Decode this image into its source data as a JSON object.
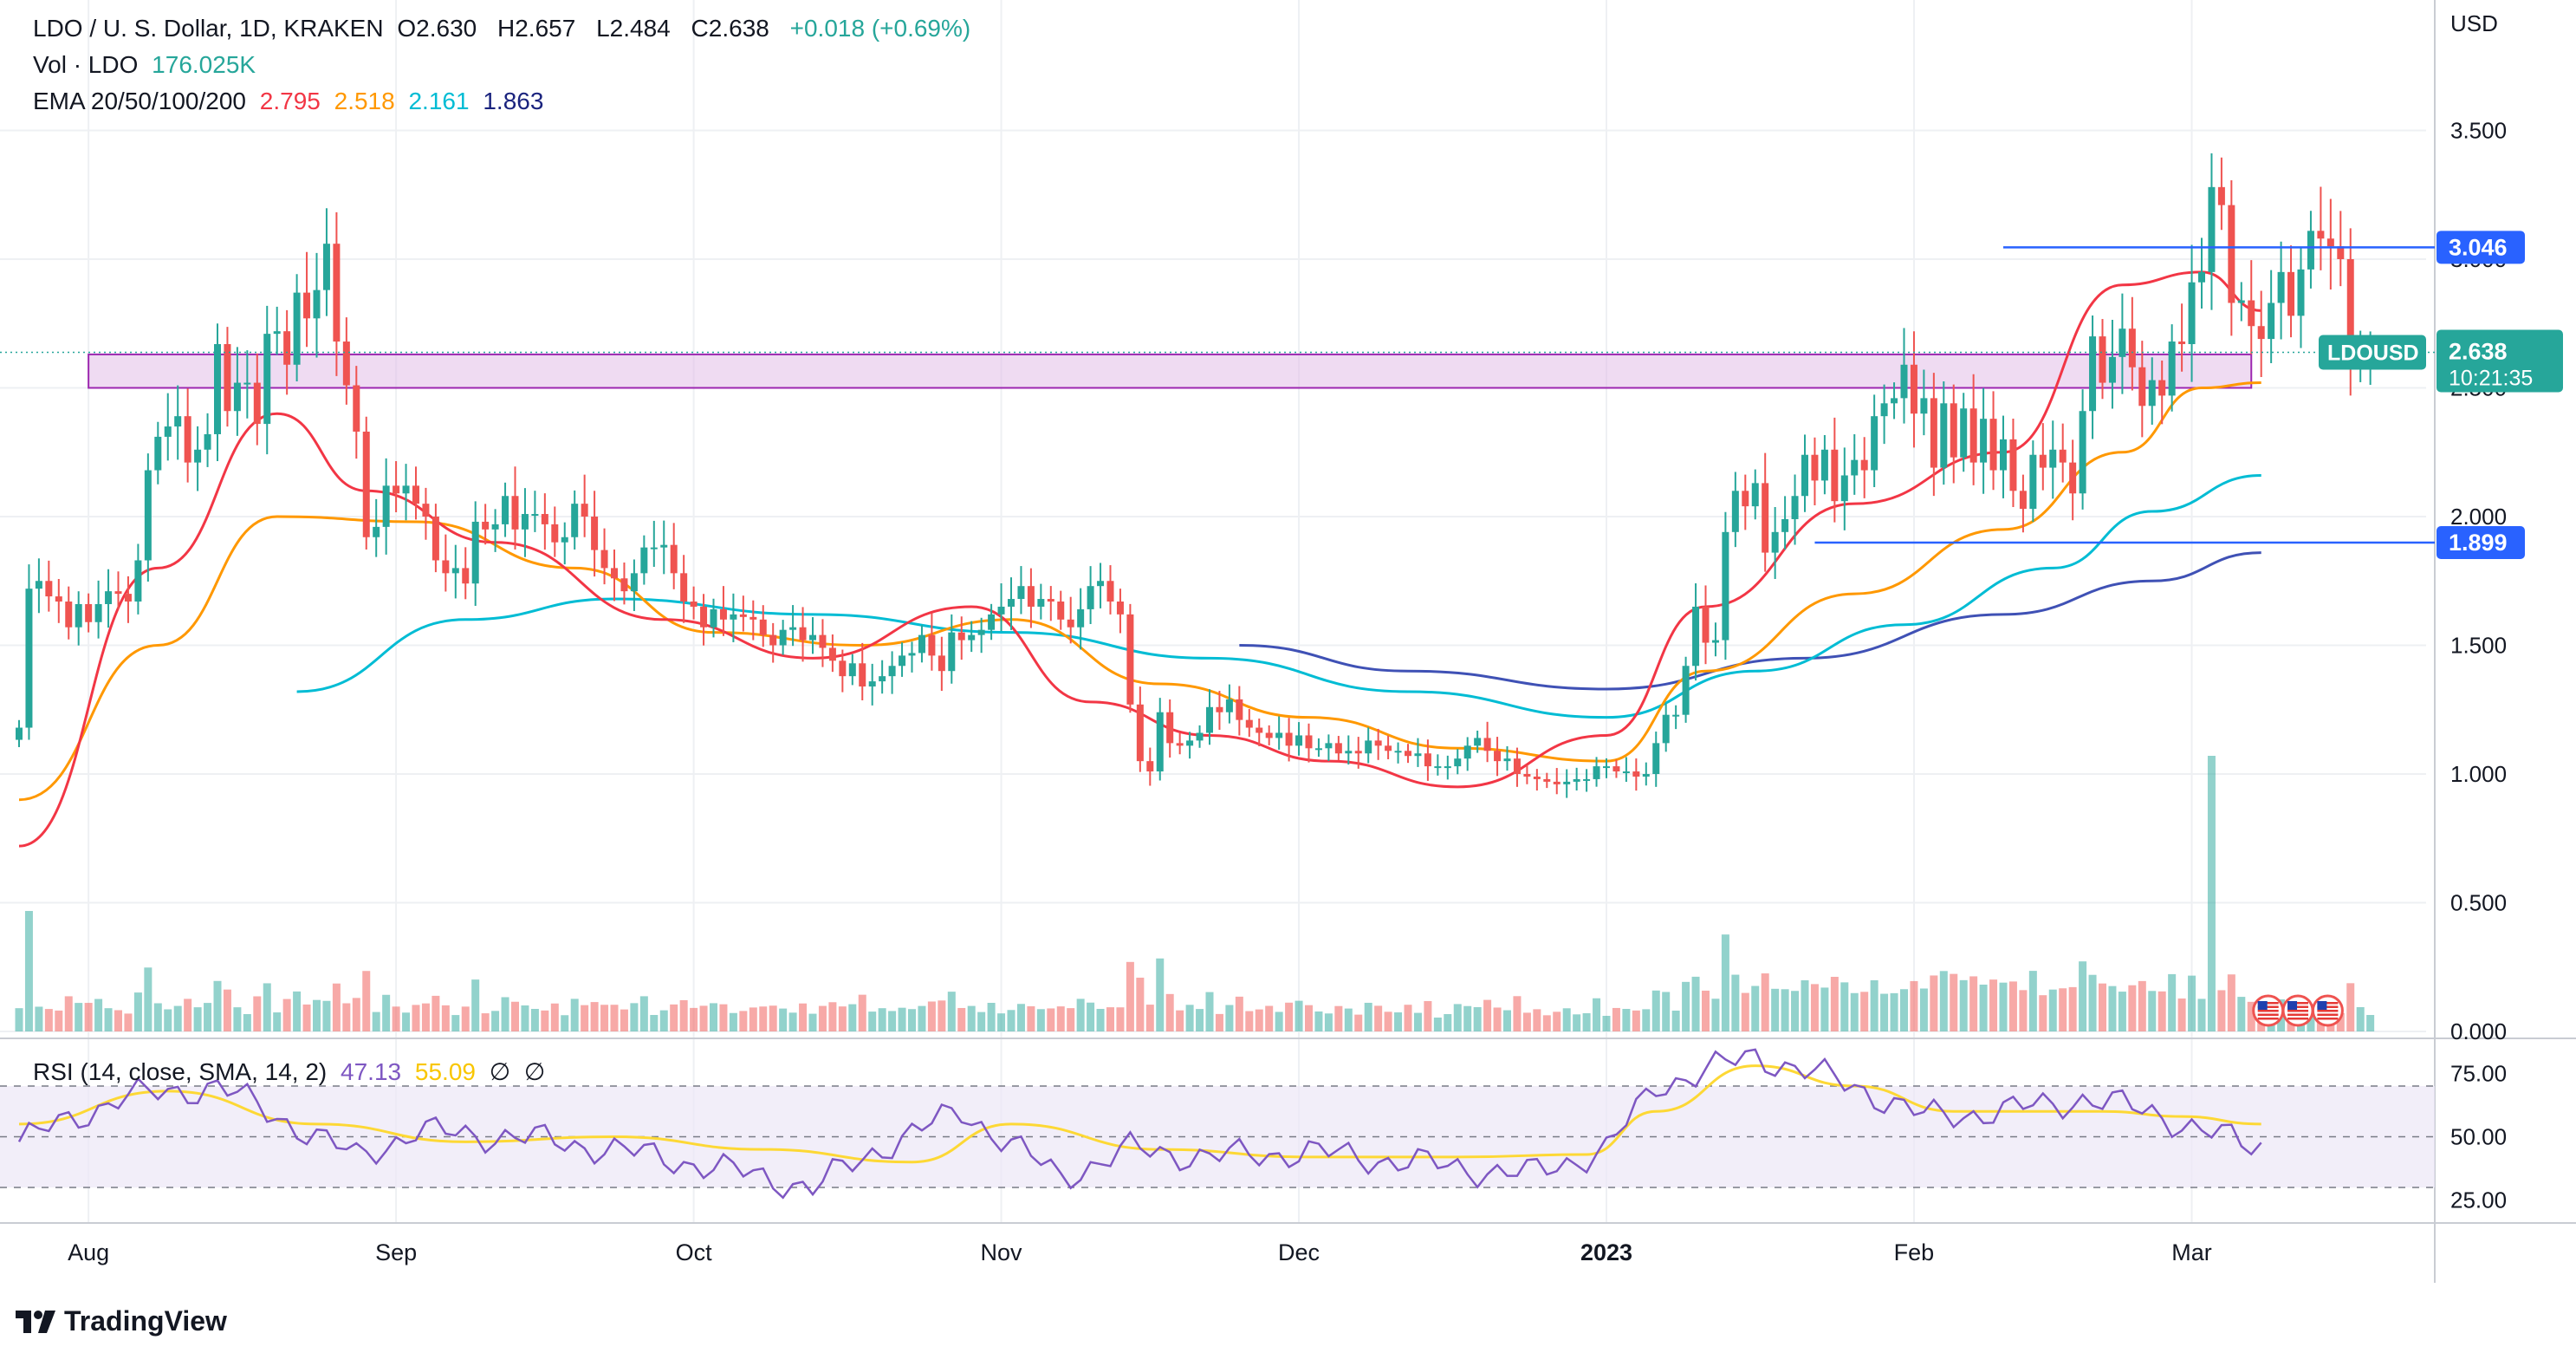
{
  "header": {
    "symbol_line": "LDO / U. S. Dollar, 1D, KRAKEN",
    "o_label": "O",
    "o_value": "2.630",
    "h_label": "H",
    "h_value": "2.657",
    "l_label": "L",
    "l_value": "2.484",
    "c_label": "C",
    "c_value": "2.638",
    "change": "+0.018 (+0.69%)",
    "vol_label": "Vol · LDO",
    "vol_value": "176.025K",
    "ema_label": "EMA 20/50/100/200",
    "ema20": "2.795",
    "ema50": "2.518",
    "ema100": "2.161",
    "ema200": "1.863"
  },
  "rsi_header": {
    "label": "RSI (14, close, SMA, 14, 2)",
    "rsi_value": "47.13",
    "sma_value": "55.09",
    "sym1": "∅",
    "sym2": "∅"
  },
  "axis": {
    "currency": "USD",
    "price_ticks": [
      "3.500",
      "3.000",
      "2.500",
      "2.000",
      "1.500",
      "1.000",
      "0.500",
      "0.000"
    ],
    "price_tick_values": [
      3.5,
      3.0,
      2.5,
      2.0,
      1.5,
      1.0,
      0.5,
      0.0
    ],
    "rsi_ticks": [
      "75.00",
      "50.00",
      "25.00"
    ],
    "rsi_tick_values": [
      75,
      50,
      25
    ],
    "x_labels": [
      "Aug",
      "Sep",
      "Oct",
      "Nov",
      "Dec",
      "2023",
      "Feb",
      "Mar"
    ],
    "x_label_days": [
      7,
      38,
      68,
      99,
      129,
      160,
      191,
      219
    ]
  },
  "badges": {
    "upper_level": "3.046",
    "lower_level": "1.899",
    "symbol": "LDOUSD",
    "price": "2.638",
    "countdown": "10:21:35"
  },
  "brand": "TradingView",
  "colors": {
    "up": "#26a69a",
    "down": "#ef5350",
    "ema20": "#f23645",
    "ema50": "#ff9800",
    "ema100": "#00bcd4",
    "ema200": "#3f51b5",
    "rsi": "#7e57c2",
    "rsi_sma": "#fdd835",
    "level_line": "#2962ff",
    "zone_fill": "#e1bee7",
    "zone_border": "#9c27b0",
    "badge_bg": "#26a69a"
  },
  "chart_data": {
    "type": "candlestick",
    "x_unit": "days since first candle (Jul 18)",
    "ylim": [
      0,
      3.75
    ],
    "levels": [
      3.046,
      1.899
    ],
    "zone": [
      2.5,
      2.63
    ],
    "ema20_x": [
      0,
      14,
      26,
      35,
      48,
      65,
      80,
      96,
      108,
      120,
      132,
      145,
      160,
      170,
      185,
      200,
      212,
      220,
      226
    ],
    "ema20_y": [
      0.72,
      1.8,
      2.4,
      2.1,
      1.9,
      1.6,
      1.45,
      1.65,
      1.28,
      1.15,
      1.05,
      0.95,
      1.15,
      1.65,
      2.05,
      2.25,
      2.9,
      2.95,
      2.8
    ],
    "ema50_x": [
      0,
      14,
      26,
      40,
      56,
      70,
      85,
      100,
      115,
      130,
      145,
      160,
      170,
      185,
      200,
      212,
      220,
      226
    ],
    "ema50_y": [
      0.9,
      1.5,
      2.0,
      1.98,
      1.8,
      1.55,
      1.5,
      1.6,
      1.35,
      1.22,
      1.1,
      1.05,
      1.4,
      1.7,
      1.95,
      2.25,
      2.5,
      2.52
    ],
    "ema100_x": [
      28,
      45,
      60,
      80,
      100,
      120,
      140,
      160,
      175,
      190,
      205,
      215,
      226
    ],
    "ema100_y": [
      1.32,
      1.6,
      1.68,
      1.62,
      1.55,
      1.45,
      1.32,
      1.22,
      1.4,
      1.58,
      1.8,
      2.02,
      2.16
    ],
    "ema200_x": [
      123,
      140,
      160,
      180,
      200,
      215,
      226
    ],
    "ema200_y": [
      1.5,
      1.4,
      1.33,
      1.45,
      1.62,
      1.75,
      1.86
    ],
    "rsi_x": [
      0,
      10,
      20,
      34,
      40,
      50,
      60,
      70,
      80,
      88,
      95,
      105,
      112,
      120,
      130,
      140,
      152,
      160,
      165,
      175,
      185,
      192,
      200,
      208,
      215,
      220,
      225
    ],
    "rsi_y": [
      48,
      65,
      70,
      42,
      52,
      50,
      45,
      38,
      30,
      48,
      60,
      34,
      45,
      42,
      44,
      40,
      35,
      45,
      70,
      82,
      70,
      58,
      60,
      65,
      60,
      52,
      47
    ],
    "rsi_sma_x": [
      0,
      15,
      30,
      45,
      60,
      75,
      90,
      100,
      115,
      130,
      145,
      158,
      165,
      175,
      185,
      195,
      210,
      218,
      226
    ],
    "rsi_sma_y": [
      55,
      68,
      55,
      48,
      50,
      45,
      40,
      55,
      45,
      42,
      42,
      43,
      60,
      78,
      70,
      60,
      60,
      58,
      55
    ],
    "closes": [
      1.18,
      1.72,
      1.75,
      1.69,
      1.67,
      1.57,
      1.66,
      1.59,
      1.66,
      1.71,
      1.7,
      1.67,
      1.83,
      2.18,
      2.31,
      2.35,
      2.39,
      2.21,
      2.26,
      2.32,
      2.67,
      2.41,
      2.52,
      2.52,
      2.36,
      2.71,
      2.72,
      2.59,
      2.87,
      2.77,
      2.88,
      3.06,
      2.68,
      2.51,
      2.33,
      1.92,
      1.96,
      2.12,
      2.09,
      2.12,
      2.05,
      2.0,
      1.83,
      1.78,
      1.8,
      1.74,
      1.98,
      1.95,
      1.97,
      2.08,
      1.95,
      2.01,
      2.01,
      1.97,
      1.9,
      1.92,
      2.05,
      2.0,
      1.87,
      1.8,
      1.76,
      1.71,
      1.78,
      1.88,
      1.88,
      1.89,
      1.78,
      1.67,
      1.65,
      1.57,
      1.64,
      1.6,
      1.62,
      1.61,
      1.6,
      1.54,
      1.5,
      1.56,
      1.57,
      1.52,
      1.54,
      1.49,
      1.44,
      1.38,
      1.43,
      1.34,
      1.36,
      1.38,
      1.42,
      1.46,
      1.47,
      1.54,
      1.46,
      1.4,
      1.55,
      1.52,
      1.54,
      1.56,
      1.62,
      1.65,
      1.68,
      1.73,
      1.65,
      1.68,
      1.67,
      1.6,
      1.57,
      1.64,
      1.73,
      1.75,
      1.67,
      1.62,
      1.27,
      1.05,
      1.01,
      1.24,
      1.12,
      1.11,
      1.13,
      1.16,
      1.26,
      1.24,
      1.29,
      1.21,
      1.18,
      1.16,
      1.14,
      1.16,
      1.11,
      1.15,
      1.1,
      1.1,
      1.12,
      1.08,
      1.09,
      1.08,
      1.13,
      1.11,
      1.09,
      1.09,
      1.07,
      1.08,
      1.03,
      1.03,
      1.03,
      1.06,
      1.11,
      1.14,
      1.09,
      1.05,
      1.06,
      1.0,
      0.99,
      0.98,
      0.97,
      0.96,
      0.97,
      0.98,
      0.98,
      1.03,
      1.03,
      1.01,
      1.01,
      0.99,
      1.0,
      1.12,
      1.23,
      1.23,
      1.42,
      1.65,
      1.51,
      1.52,
      1.94,
      2.1,
      2.04,
      2.13,
      1.86,
      1.94,
      1.99,
      2.08,
      2.24,
      2.14,
      2.26,
      2.06,
      2.16,
      2.22,
      2.18,
      2.39,
      2.44,
      2.46,
      2.59,
      2.4,
      2.46,
      2.19,
      2.44,
      2.23,
      2.42,
      2.21,
      2.38,
      2.18,
      2.3,
      2.1,
      2.03,
      2.24,
      2.19,
      2.26,
      2.21,
      2.09,
      2.41,
      2.7,
      2.52,
      2.62,
      2.73,
      2.58,
      2.43,
      2.53,
      2.47,
      2.68,
      2.67,
      2.91,
      2.95,
      3.28,
      3.21,
      2.83,
      2.84,
      2.74,
      2.69,
      2.83,
      2.95,
      2.78,
      2.96,
      3.11,
      3.08,
      3.05,
      3.0,
      2.6,
      2.63,
      2.64
    ]
  }
}
